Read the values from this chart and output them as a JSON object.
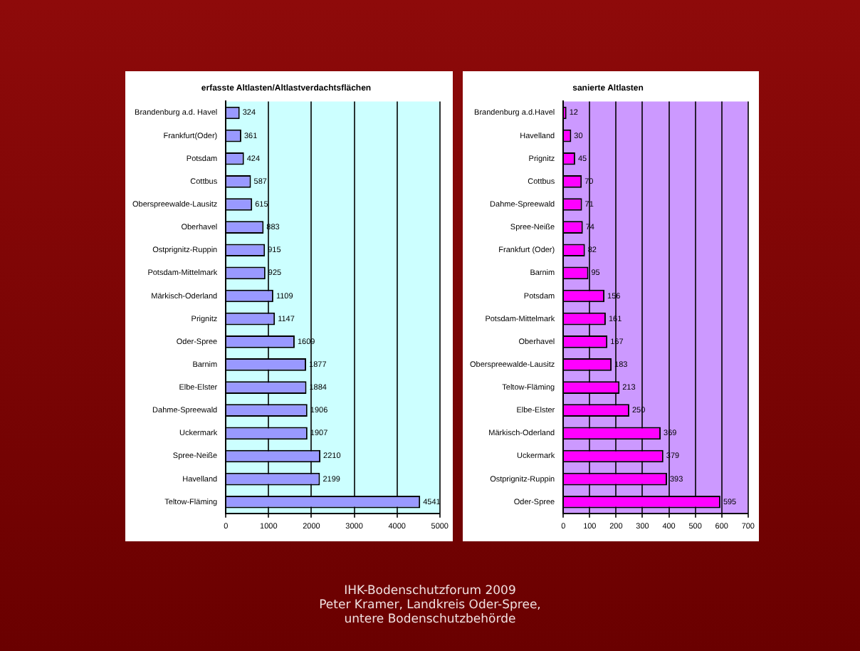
{
  "chart_data": [
    {
      "type": "bar",
      "orientation": "horizontal",
      "title": "erfasste Altlasten/Altlastverdachtsflächen",
      "categories": [
        "Brandenburg a.d. Havel",
        "Frankfurt(Oder)",
        "Potsdam",
        "Cottbus",
        "Oberspreewalde-Lausitz",
        "Oberhavel",
        "Ostprignitz-Ruppin",
        "Potsdam-Mittelmark",
        "Märkisch-Oderland",
        "Prignitz",
        "Oder-Spree",
        "Barnim",
        "Elbe-Elster",
        "Dahme-Spreewald",
        "Uckermark",
        "Spree-Neiße",
        "Havelland",
        "Teltow-Fläming"
      ],
      "values": [
        324,
        361,
        424,
        587,
        615,
        883,
        915,
        925,
        1109,
        1147,
        1609,
        1877,
        1884,
        1906,
        1907,
        2210,
        2199,
        4541
      ],
      "color": "#9999ff",
      "xlim": [
        0,
        5000
      ],
      "xticks": [
        0,
        1000,
        2000,
        3000,
        4000,
        5000
      ],
      "grid": "x",
      "data_labels": true,
      "annotations": [
        "IHK-Bodenschutzforum 2009",
        "Peter Kramer, Landkreis Oder-Spree,",
        "untere Bodenschutzbehörde"
      ]
    },
    {
      "type": "bar",
      "orientation": "horizontal",
      "title": "sanierte Altlasten",
      "categories": [
        "Brandenburg a.d.Havel",
        "Havelland",
        "Prignitz",
        "Cottbus",
        "Dahme-Spreewald",
        "Spree-Neiße",
        "Frankfurt (Oder)",
        "Barnim",
        "Potsdam",
        "Potsdam-Mittelmark",
        "Oberhavel",
        "Oberspreewalde-Lausitz",
        "Teltow-Fläming",
        "Elbe-Elster",
        "Märkisch-Oderland",
        "Uckermark",
        "Ostprignitz-Ruppin",
        "Oder-Spree"
      ],
      "values": [
        12,
        30,
        45,
        70,
        71,
        74,
        82,
        95,
        156,
        161,
        167,
        183,
        213,
        250,
        369,
        379,
        393,
        595
      ],
      "color": "#ff00ff",
      "xlim": [
        0,
        700
      ],
      "xticks": [
        0,
        100,
        200,
        300,
        400,
        500,
        600,
        700
      ],
      "grid": "x",
      "data_labels": true
    }
  ]
}
